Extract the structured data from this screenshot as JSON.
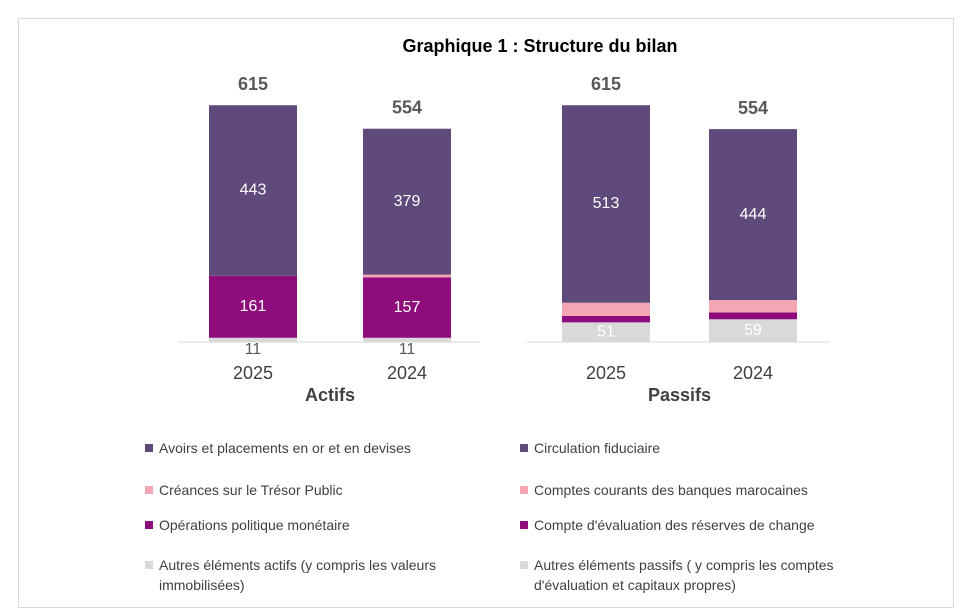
{
  "title": "Graphique 1 : Structure du bilan",
  "chart_data": [
    {
      "type": "bar",
      "stacked": true,
      "xlabel": "Actifs",
      "categories": [
        "2025",
        "2024"
      ],
      "totals": [
        615,
        554
      ],
      "series": [
        {
          "name": "Avoirs et placements en or et en devises",
          "color": "#604a7b",
          "values": [
            443,
            379
          ]
        },
        {
          "name": "Créances sur le Trésor Public",
          "color": "#f4a6b4",
          "values": [
            0,
            7
          ]
        },
        {
          "name": "Opérations politique monétaire",
          "color": "#8e0c7c",
          "values": [
            161,
            157
          ]
        },
        {
          "name": "Autres éléments actifs (y compris les valeurs immobilisées)",
          "color": "#d9d9d9",
          "values": [
            11,
            11
          ]
        }
      ]
    },
    {
      "type": "bar",
      "stacked": true,
      "xlabel": "Passifs",
      "categories": [
        "2025",
        "2024"
      ],
      "totals": [
        615,
        554
      ],
      "series": [
        {
          "name": "Circulation fiduciaire",
          "color": "#604a7b",
          "values": [
            513,
            444
          ]
        },
        {
          "name": "Comptes courants des banques marocaines",
          "color": "#f4a6b4",
          "values": [
            34,
            32
          ]
        },
        {
          "name": "Compte d'évaluation des réserves de change",
          "color": "#8e0c7c",
          "values": [
            17,
            18
          ]
        },
        {
          "name": "Autres éléments passifs ( y compris les comptes d'évaluation et capitaux propres)",
          "color": "#d9d9d9",
          "values": [
            51,
            59
          ]
        }
      ]
    }
  ]
}
